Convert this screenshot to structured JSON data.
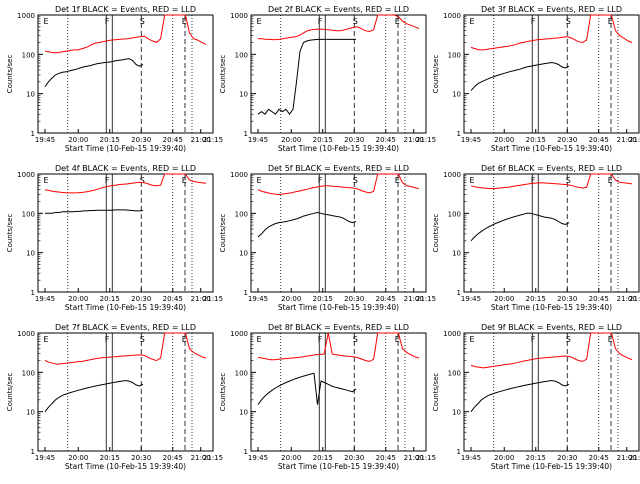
{
  "chart_data": [
    {
      "type": "line",
      "title": "Det 1f BLACK = Events, RED = LLD",
      "xlabel": "Start Time (10-Feb-15 19:39:40)",
      "ylabel": "Counts/sec",
      "scale": "log",
      "ylim": [
        1,
        1000
      ],
      "x_ticks": [
        "19:45",
        "20:00",
        "20:15",
        "20:30",
        "20:45",
        "21:00",
        "21:15"
      ],
      "y_ticks": [
        "1",
        "10",
        "100",
        "1000"
      ],
      "letters": [
        "E",
        "F",
        "S",
        "E"
      ],
      "series": [
        {
          "color": "#ff0000",
          "values": [
            120,
            115,
            110,
            110,
            115,
            120,
            125,
            130,
            130,
            140,
            150,
            170,
            190,
            200,
            210,
            220,
            230,
            235,
            240,
            245,
            250,
            260,
            270,
            280,
            290,
            250,
            220,
            200,
            250,
            1000,
            1000,
            1000,
            1000,
            1000,
            1000,
            350,
            250,
            230,
            200,
            180
          ]
        },
        {
          "color": "#000000",
          "values": [
            15,
            20,
            25,
            30,
            33,
            35,
            36,
            38,
            40,
            42,
            45,
            48,
            50,
            52,
            55,
            58,
            60,
            62,
            63,
            65,
            68,
            70,
            72,
            75,
            78,
            70,
            55,
            50,
            55
          ]
        }
      ]
    },
    {
      "type": "line",
      "title": "Det 2f BLACK = Events, RED = LLD",
      "xlabel": "Start Time (10-Feb-15 19:39:40)",
      "ylabel": "Counts/sec",
      "scale": "log",
      "ylim": [
        1,
        1000
      ],
      "x_ticks": [
        "19:45",
        "20:00",
        "20:15",
        "20:30",
        "20:45",
        "21:00",
        "21:15"
      ],
      "y_ticks": [
        "1",
        "10",
        "100",
        "1000"
      ],
      "letters": [
        "E",
        "F",
        "S",
        "E"
      ],
      "series": [
        {
          "color": "#ff0000",
          "values": [
            250,
            250,
            240,
            240,
            235,
            240,
            250,
            260,
            270,
            280,
            300,
            350,
            400,
            420,
            430,
            440,
            430,
            420,
            410,
            400,
            400,
            420,
            450,
            480,
            500,
            450,
            400,
            380,
            420,
            1000,
            1000,
            1000,
            1000,
            1000,
            900,
            700,
            600,
            550,
            500,
            450
          ]
        },
        {
          "color": "#000000",
          "values": [
            3,
            3.5,
            3,
            4,
            3.5,
            3,
            4,
            3.5,
            4,
            3,
            4,
            20,
            120,
            200,
            220,
            230,
            235,
            240,
            240,
            240,
            240,
            240,
            240,
            240,
            240,
            240,
            240,
            240,
            240
          ]
        }
      ]
    },
    {
      "type": "line",
      "title": "Det 3f BLACK = Events, RED = LLD",
      "xlabel": "Start Time (10-Feb-15 19:39:40)",
      "ylabel": "Counts/sec",
      "scale": "log",
      "ylim": [
        1,
        1000
      ],
      "x_ticks": [
        "19:45",
        "20:00",
        "20:15",
        "20:30",
        "20:45",
        "21:00",
        "21:15"
      ],
      "y_ticks": [
        "1",
        "10",
        "100",
        "1000"
      ],
      "letters": [
        "E",
        "F",
        "S",
        "E"
      ],
      "series": [
        {
          "color": "#ff0000",
          "values": [
            150,
            140,
            130,
            130,
            135,
            140,
            145,
            150,
            155,
            160,
            170,
            180,
            195,
            205,
            215,
            225,
            235,
            240,
            245,
            250,
            255,
            260,
            270,
            280,
            270,
            240,
            210,
            200,
            230,
            1000,
            1000,
            1000,
            1000,
            1000,
            1000,
            400,
            300,
            260,
            220,
            200
          ]
        },
        {
          "color": "#000000",
          "values": [
            12,
            15,
            18,
            20,
            22,
            24,
            26,
            28,
            30,
            32,
            34,
            36,
            38,
            40,
            42,
            45,
            48,
            50,
            52,
            54,
            56,
            58,
            60,
            62,
            60,
            55,
            48,
            45,
            50
          ]
        }
      ]
    },
    {
      "type": "line",
      "title": "Det 4f BLACK = Events, RED = LLD",
      "xlabel": "Start Time (10-Feb-15 19:39:40)",
      "ylabel": "Counts/sec",
      "scale": "log",
      "ylim": [
        1,
        1000
      ],
      "x_ticks": [
        "19:45",
        "20:00",
        "20:15",
        "20:30",
        "20:45",
        "21:00",
        "21:15"
      ],
      "y_ticks": [
        "1",
        "10",
        "100",
        "1000"
      ],
      "letters": [
        "E",
        "F",
        "S",
        "E"
      ],
      "series": [
        {
          "color": "#ff0000",
          "values": [
            400,
            380,
            360,
            350,
            340,
            335,
            330,
            330,
            335,
            340,
            350,
            370,
            390,
            420,
            450,
            480,
            500,
            520,
            540,
            550,
            560,
            580,
            600,
            620,
            600,
            560,
            520,
            500,
            520,
            1000,
            1000,
            1000,
            1000,
            1000,
            1000,
            700,
            650,
            620,
            600,
            580
          ]
        },
        {
          "color": "#000000",
          "values": [
            100,
            100,
            100,
            105,
            105,
            110,
            110,
            110,
            110,
            112,
            112,
            115,
            115,
            118,
            118,
            120,
            120,
            120,
            120,
            120,
            122,
            122,
            122,
            122,
            120,
            118,
            115,
            115,
            118
          ]
        }
      ]
    },
    {
      "type": "line",
      "title": "Det 5f BLACK = Events, RED = LLD",
      "xlabel": "Start Time (10-Feb-15 19:39:40)",
      "ylabel": "Counts/sec",
      "scale": "log",
      "ylim": [
        1,
        1000
      ],
      "x_ticks": [
        "19:45",
        "20:00",
        "20:15",
        "20:30",
        "20:45",
        "21:00",
        "21:15"
      ],
      "y_ticks": [
        "1",
        "10",
        "100",
        "1000"
      ],
      "letters": [
        "E",
        "F",
        "S",
        "E"
      ],
      "series": [
        {
          "color": "#ff0000",
          "values": [
            400,
            360,
            340,
            320,
            310,
            300,
            310,
            320,
            330,
            350,
            370,
            390,
            410,
            440,
            460,
            480,
            500,
            500,
            490,
            480,
            470,
            460,
            450,
            440,
            420,
            380,
            350,
            330,
            360,
            1000,
            1000,
            1000,
            1000,
            1000,
            1000,
            600,
            500,
            480,
            450,
            420
          ]
        },
        {
          "color": "#000000",
          "values": [
            25,
            30,
            38,
            45,
            50,
            55,
            58,
            60,
            62,
            65,
            68,
            72,
            78,
            85,
            90,
            95,
            100,
            105,
            100,
            95,
            92,
            88,
            85,
            82,
            78,
            70,
            62,
            58,
            62
          ]
        }
      ]
    },
    {
      "type": "line",
      "title": "Det 6f BLACK = Events, RED = LLD",
      "xlabel": "Start Time (10-Feb-15 19:39:40)",
      "ylabel": "Counts/sec",
      "scale": "log",
      "ylim": [
        1,
        1000
      ],
      "x_ticks": [
        "19:45",
        "20:00",
        "20:15",
        "20:30",
        "20:45",
        "21:00",
        "21:15"
      ],
      "y_ticks": [
        "1",
        "10",
        "100",
        "1000"
      ],
      "letters": [
        "E",
        "F",
        "S",
        "E"
      ],
      "series": [
        {
          "color": "#ff0000",
          "values": [
            500,
            470,
            450,
            440,
            430,
            425,
            430,
            440,
            450,
            460,
            480,
            500,
            520,
            540,
            560,
            580,
            590,
            600,
            590,
            580,
            570,
            560,
            550,
            540,
            520,
            490,
            460,
            440,
            460,
            1000,
            1000,
            1000,
            1000,
            1000,
            1000,
            700,
            620,
            600,
            580,
            560
          ]
        },
        {
          "color": "#000000",
          "values": [
            20,
            25,
            30,
            35,
            40,
            45,
            50,
            55,
            60,
            65,
            70,
            75,
            80,
            85,
            90,
            95,
            100,
            100,
            95,
            90,
            85,
            80,
            78,
            75,
            70,
            62,
            55,
            52,
            58
          ]
        }
      ]
    },
    {
      "type": "line",
      "title": "Det 7f BLACK = Events, RED = LLD",
      "xlabel": "Start Time (10-Feb-15 19:39:40)",
      "ylabel": "Counts/sec",
      "scale": "log",
      "ylim": [
        1,
        1000
      ],
      "x_ticks": [
        "19:45",
        "20:00",
        "20:15",
        "20:30",
        "20:45",
        "21:00",
        "21:15"
      ],
      "y_ticks": [
        "1",
        "10",
        "100",
        "1000"
      ],
      "letters": [
        "E",
        "F",
        "S",
        "E"
      ],
      "series": [
        {
          "color": "#ff0000",
          "values": [
            200,
            180,
            170,
            160,
            165,
            170,
            175,
            180,
            185,
            190,
            200,
            210,
            220,
            230,
            235,
            240,
            245,
            250,
            255,
            260,
            265,
            270,
            275,
            280,
            270,
            240,
            215,
            200,
            230,
            1000,
            1000,
            1000,
            1000,
            1000,
            1000,
            400,
            320,
            280,
            250,
            230
          ]
        },
        {
          "color": "#000000",
          "values": [
            10,
            13,
            16,
            20,
            23,
            26,
            28,
            30,
            32,
            34,
            36,
            38,
            40,
            42,
            44,
            46,
            48,
            50,
            52,
            54,
            56,
            58,
            60,
            62,
            60,
            55,
            48,
            45,
            50
          ]
        }
      ]
    },
    {
      "type": "line",
      "title": "Det 8f BLACK = Events, RED = LLD",
      "xlabel": "Start Time (10-Feb-15 19:39:40)",
      "ylabel": "Counts/sec",
      "scale": "log",
      "ylim": [
        1,
        1000
      ],
      "x_ticks": [
        "19:45",
        "20:00",
        "20:15",
        "20:30",
        "20:45",
        "21:00",
        "21:15"
      ],
      "y_ticks": [
        "1",
        "10",
        "100",
        "1000"
      ],
      "letters": [
        "E",
        "F",
        "S",
        "E"
      ],
      "series": [
        {
          "color": "#ff0000",
          "values": [
            240,
            230,
            220,
            210,
            210,
            215,
            220,
            225,
            230,
            235,
            240,
            250,
            260,
            270,
            280,
            285,
            290,
            1000,
            290,
            280,
            270,
            260,
            255,
            250,
            240,
            220,
            200,
            190,
            215,
            1000,
            1000,
            1000,
            1000,
            1000,
            1000,
            400,
            320,
            280,
            250,
            230
          ]
        },
        {
          "color": "#000000",
          "values": [
            15,
            20,
            25,
            30,
            35,
            40,
            45,
            50,
            55,
            60,
            65,
            70,
            75,
            80,
            85,
            90,
            95,
            15,
            60,
            55,
            50,
            45,
            42,
            40,
            38,
            36,
            34,
            32,
            38
          ]
        }
      ]
    },
    {
      "type": "line",
      "title": "Det 9f BLACK = Events, RED = LLD",
      "xlabel": "Start Time (10-Feb-15 19:39:40)",
      "ylabel": "Counts/sec",
      "scale": "log",
      "ylim": [
        1,
        1000
      ],
      "x_ticks": [
        "19:45",
        "20:00",
        "20:15",
        "20:30",
        "20:45",
        "21:00",
        "21:15"
      ],
      "y_ticks": [
        "1",
        "10",
        "100",
        "1000"
      ],
      "letters": [
        "E",
        "F",
        "S",
        "E"
      ],
      "series": [
        {
          "color": "#ff0000",
          "values": [
            150,
            140,
            135,
            130,
            135,
            140,
            145,
            150,
            155,
            160,
            165,
            175,
            185,
            195,
            205,
            215,
            225,
            230,
            235,
            240,
            245,
            250,
            255,
            260,
            250,
            225,
            200,
            190,
            215,
            1000,
            1000,
            1000,
            1000,
            1000,
            1000,
            400,
            300,
            260,
            230,
            210
          ]
        },
        {
          "color": "#000000",
          "values": [
            10,
            13,
            16,
            20,
            23,
            26,
            28,
            30,
            32,
            34,
            36,
            38,
            40,
            42,
            44,
            46,
            48,
            50,
            52,
            54,
            56,
            58,
            60,
            62,
            60,
            55,
            48,
            45,
            50
          ]
        }
      ]
    }
  ]
}
